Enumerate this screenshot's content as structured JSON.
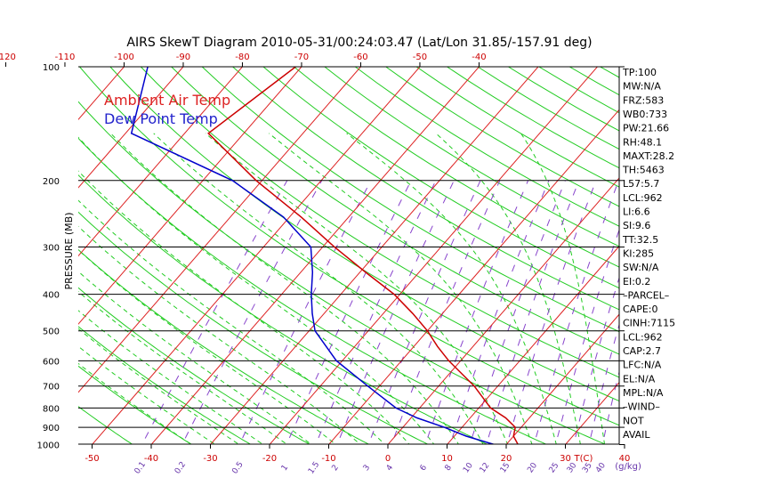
{
  "chart_data": {
    "type": "line",
    "title": "AIRS SkewT Diagram 2010-05-31/00:24:03.47 (Lat/Lon 31.85/-157.91 deg)",
    "ylabel": "PRESSURE (MB)",
    "xlabel": "T(C)",
    "mixing_ratio_label": "(g/kg)",
    "pressure_ticks": [
      "100",
      "200",
      "300",
      "400",
      "500",
      "600",
      "700",
      "800",
      "900",
      "1000"
    ],
    "bottom_temp_ticks": [
      "-50",
      "-40",
      "-30",
      "-20",
      "-10",
      "0",
      "10",
      "20",
      "30",
      "40"
    ],
    "top_temp_ticks": [
      "-120",
      "-110",
      "-100",
      "-90",
      "-80",
      "-70",
      "-60",
      "-50",
      "-40"
    ],
    "mixing_ratio_ticks": [
      "0.1",
      "0.2",
      "0.5",
      "1",
      "1.5",
      "2",
      "3",
      "4",
      "6",
      "8",
      "10",
      "12",
      "15",
      "20",
      "25",
      "30",
      "35",
      "40"
    ],
    "legend": [
      {
        "label": "Ambient Air Temp",
        "color": "#dd2222"
      },
      {
        "label": "Dew Point Temp",
        "color": "#2222cc"
      }
    ],
    "series": [
      {
        "name": "Ambient Air Temp",
        "color": "#cc0000",
        "points": [
          {
            "p": 100,
            "t": -71
          },
          {
            "p": 150,
            "t": -76
          },
          {
            "p": 200,
            "t": -61
          },
          {
            "p": 250,
            "t": -48
          },
          {
            "p": 300,
            "t": -38
          },
          {
            "p": 350,
            "t": -29
          },
          {
            "p": 400,
            "t": -21
          },
          {
            "p": 450,
            "t": -15
          },
          {
            "p": 500,
            "t": -10
          },
          {
            "p": 550,
            "t": -6
          },
          {
            "p": 600,
            "t": -2
          },
          {
            "p": 700,
            "t": 6
          },
          {
            "p": 800,
            "t": 12
          },
          {
            "p": 850,
            "t": 16
          },
          {
            "p": 900,
            "t": 19
          },
          {
            "p": 950,
            "t": 20
          },
          {
            "p": 1000,
            "t": 22
          }
        ]
      },
      {
        "name": "Dew Point Temp",
        "color": "#0000cc",
        "points": [
          {
            "p": 100,
            "t": -96
          },
          {
            "p": 150,
            "t": -89
          },
          {
            "p": 200,
            "t": -65
          },
          {
            "p": 250,
            "t": -51
          },
          {
            "p": 300,
            "t": -42
          },
          {
            "p": 350,
            "t": -38
          },
          {
            "p": 400,
            "t": -35
          },
          {
            "p": 450,
            "t": -32
          },
          {
            "p": 500,
            "t": -29
          },
          {
            "p": 600,
            "t": -21
          },
          {
            "p": 700,
            "t": -12
          },
          {
            "p": 800,
            "t": -4
          },
          {
            "p": 850,
            "t": 1
          },
          {
            "p": 900,
            "t": 7
          },
          {
            "p": 950,
            "t": 12
          },
          {
            "p": 1000,
            "t": 18
          }
        ]
      }
    ],
    "stability_indices": [
      "TP:100",
      "MW:N/A",
      "FRZ:583",
      "WB0:733",
      "PW:21.66",
      "RH:48.1",
      "MAXT:28.2",
      "TH:5463",
      "L57:5.7",
      "LCL:962",
      "LI:6.6",
      "SI:9.6",
      "TT:32.5",
      "KI:285",
      "SW:N/A",
      "EI:0.2",
      "–PARCEL–",
      "CAPE:0",
      "CINH:7115",
      "LCL:962",
      "CAP:2.7",
      "LFC:N/A",
      "EL:N/A",
      "MPL:N/A",
      "–WIND–",
      "NOT",
      "AVAIL"
    ],
    "grid": true
  }
}
